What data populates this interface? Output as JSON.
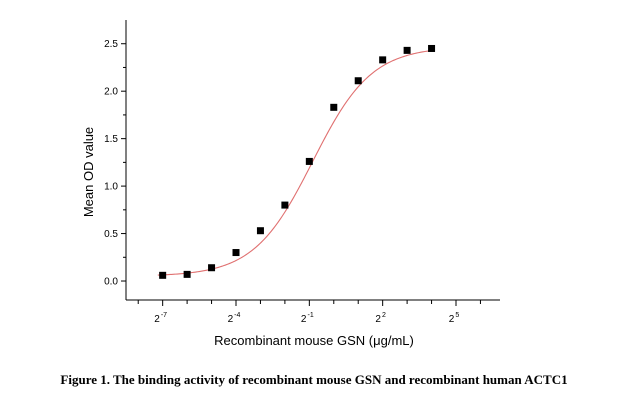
{
  "caption": "Figure 1. The binding activity of recombinant mouse GSN and recombinant human ACTC1",
  "chart_data": {
    "type": "scatter",
    "title": "",
    "xlabel": "Recombinant mouse GSN (μg/mL)",
    "ylabel": "Mean OD value",
    "x_scale": "log2",
    "x_tick_labels": [
      {
        "base": "2",
        "exp": "-7",
        "value": 0.0078125
      },
      {
        "base": "2",
        "exp": "-4",
        "value": 0.0625
      },
      {
        "base": "2",
        "exp": "-1",
        "value": 0.5
      },
      {
        "base": "2",
        "exp": "2",
        "value": 4
      },
      {
        "base": "2",
        "exp": "5",
        "value": 32
      }
    ],
    "y_ticks": [
      "0.0",
      "0.5",
      "1.0",
      "1.5",
      "2.0",
      "2.5"
    ],
    "ylim": [
      -0.2,
      2.75
    ],
    "grid": false,
    "legend": "none",
    "series": [
      {
        "marker": "square",
        "marker_color": "#000000",
        "x": [
          0.00781,
          0.01563,
          0.03125,
          0.0625,
          0.125,
          0.25,
          0.5,
          1,
          2,
          4,
          8,
          16
        ],
        "y": [
          0.06,
          0.07,
          0.14,
          0.3,
          0.53,
          0.8,
          1.26,
          1.83,
          2.11,
          2.33,
          2.43,
          2.45
        ]
      }
    ],
    "fit_curve": {
      "type": "four-parameter logistic",
      "color": "#e07070",
      "bottom": 0.05,
      "top": 2.47,
      "ec50": 0.55,
      "hill": 1.2
    }
  }
}
